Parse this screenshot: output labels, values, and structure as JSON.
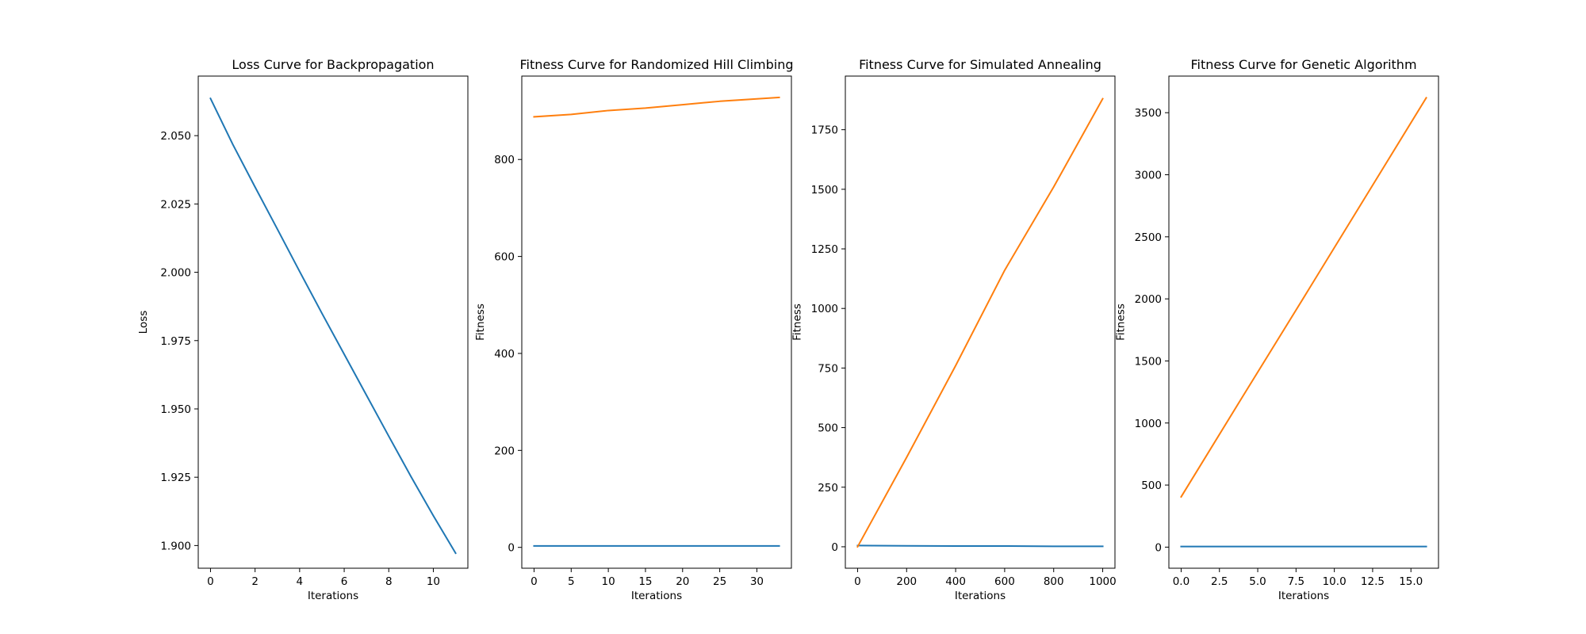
{
  "colors": {
    "series_blue": "#1f77b4",
    "series_orange": "#ff7f0e"
  },
  "chart_data": [
    {
      "type": "line",
      "title": "Loss Curve for Backpropagation",
      "xlabel": "Iterations",
      "ylabel": "Loss",
      "xlim": [
        -0.55,
        11.55
      ],
      "ylim": [
        1.8917,
        2.0718
      ],
      "xticks": [
        0,
        2,
        4,
        6,
        8,
        10
      ],
      "xtick_labels": [
        "0",
        "2",
        "4",
        "6",
        "8",
        "10"
      ],
      "yticks": [
        1.9,
        1.925,
        1.95,
        1.975,
        2.0,
        2.025,
        2.05
      ],
      "ytick_labels": [
        "1.900",
        "1.925",
        "1.950",
        "1.975",
        "2.000",
        "2.025",
        "2.050"
      ],
      "grid": false,
      "series": [
        {
          "color": "#1f77b4",
          "x": [
            0,
            1,
            2,
            3,
            4,
            5,
            6,
            7,
            8,
            9,
            10,
            11
          ],
          "y": [
            2.0636,
            2.0468,
            2.0312,
            2.0158,
            2.0003,
            1.985,
            1.97,
            1.955,
            1.94,
            1.9252,
            1.9109,
            1.8972
          ]
        }
      ]
    },
    {
      "type": "line",
      "title": "Fitness Curve for Randomized Hill Climbing",
      "xlabel": "Iterations",
      "ylabel": "Fitness",
      "xlim": [
        -1.65,
        34.65
      ],
      "ylim": [
        -43,
        972
      ],
      "xticks": [
        0,
        5,
        10,
        15,
        20,
        25,
        30
      ],
      "xtick_labels": [
        "0",
        "5",
        "10",
        "15",
        "20",
        "25",
        "30"
      ],
      "yticks": [
        0,
        200,
        400,
        600,
        800
      ],
      "ytick_labels": [
        "0",
        "200",
        "400",
        "600",
        "800"
      ],
      "grid": false,
      "series": [
        {
          "color": "#1f77b4",
          "x": [
            0,
            33
          ],
          "y": [
            3,
            3
          ]
        },
        {
          "color": "#ff7f0e",
          "x": [
            0,
            5,
            10,
            15,
            20,
            25,
            30,
            33
          ],
          "y": [
            888,
            893,
            901,
            906,
            913,
            920,
            925,
            928
          ]
        }
      ]
    },
    {
      "type": "line",
      "title": "Fitness Curve for Simulated Annealing",
      "xlabel": "Iterations",
      "ylabel": "Fitness",
      "xlim": [
        -50,
        1050
      ],
      "ylim": [
        -90,
        1975
      ],
      "xticks": [
        0,
        200,
        400,
        600,
        800,
        1000
      ],
      "xtick_labels": [
        "0",
        "200",
        "400",
        "600",
        "800",
        "1000"
      ],
      "yticks": [
        0,
        250,
        500,
        750,
        1000,
        1250,
        1500,
        1750
      ],
      "ytick_labels": [
        "0",
        "250",
        "500",
        "750",
        "1000",
        "1250",
        "1500",
        "1750"
      ],
      "grid": false,
      "series": [
        {
          "color": "#1f77b4",
          "x": [
            0,
            200,
            400,
            600,
            800,
            1000
          ],
          "y": [
            5,
            4,
            3,
            3,
            2,
            2
          ]
        },
        {
          "color": "#ff7f0e",
          "x": [
            0,
            200,
            400,
            600,
            800,
            1000
          ],
          "y": [
            0,
            375,
            760,
            1160,
            1510,
            1880
          ]
        }
      ]
    },
    {
      "type": "line",
      "title": "Fitness Curve for Genetic Algorithm",
      "xlabel": "Iterations",
      "ylabel": "Fitness",
      "xlim": [
        -0.8,
        16.8
      ],
      "ylim": [
        -170,
        3795
      ],
      "xticks": [
        0,
        2.5,
        5,
        7.5,
        10,
        12.5,
        15
      ],
      "xtick_labels": [
        "0.0",
        "2.5",
        "5.0",
        "7.5",
        "10.0",
        "12.5",
        "15.0"
      ],
      "yticks": [
        0,
        500,
        1000,
        1500,
        2000,
        2500,
        3000,
        3500
      ],
      "ytick_labels": [
        "0",
        "500",
        "1000",
        "1500",
        "2000",
        "2500",
        "3000",
        "3500"
      ],
      "grid": false,
      "series": [
        {
          "color": "#1f77b4",
          "x": [
            0,
            16
          ],
          "y": [
            5,
            5
          ]
        },
        {
          "color": "#ff7f0e",
          "x": [
            0,
            4,
            8,
            12,
            16
          ],
          "y": [
            405,
            1210,
            2010,
            2815,
            3620
          ]
        }
      ]
    }
  ]
}
